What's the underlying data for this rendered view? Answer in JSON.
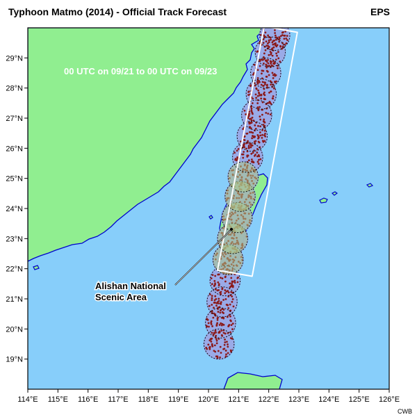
{
  "header": {
    "title": "Typhoon Matmo (2014) - Official Track Forecast",
    "model": "EPS"
  },
  "annotations": {
    "time_window": "00 UTC on 09/21 to 00 UTC on 09/23",
    "callout_line1": "Alishan National",
    "callout_line2": "Scenic Area"
  },
  "credit": "CWB",
  "map": {
    "lon_range": [
      114,
      126
    ],
    "lat_range": [
      18,
      30
    ],
    "lon_ticks": [
      "114°E",
      "115°E",
      "116°E",
      "117°E",
      "118°E",
      "119°E",
      "120°E",
      "121°E",
      "122°E",
      "123°E",
      "124°E",
      "125°E",
      "126°E"
    ],
    "lat_ticks": [
      "19°N",
      "20°N",
      "21°N",
      "22°N",
      "23°N",
      "24°N",
      "25°N",
      "26°N",
      "27°N",
      "28°N",
      "29°N"
    ],
    "colors": {
      "ocean": "#87cefa",
      "land": "#90ee90",
      "coast": "#0000cd",
      "track_band": "#9ba8e6",
      "member_dot": "#8b1a1a",
      "window_box": "#ffffff",
      "highlight_land": "#a9c98a"
    }
  },
  "track_forecast": {
    "centers": [
      {
        "lon": 120.35,
        "lat": 19.5
      },
      {
        "lon": 120.4,
        "lat": 20.2
      },
      {
        "lon": 120.45,
        "lat": 20.9
      },
      {
        "lon": 120.55,
        "lat": 21.6
      },
      {
        "lon": 120.65,
        "lat": 22.3
      },
      {
        "lon": 120.8,
        "lat": 23.0
      },
      {
        "lon": 120.95,
        "lat": 23.7
      },
      {
        "lon": 121.05,
        "lat": 24.4
      },
      {
        "lon": 121.15,
        "lat": 25.05
      },
      {
        "lon": 121.3,
        "lat": 25.7
      },
      {
        "lon": 121.45,
        "lat": 26.4
      },
      {
        "lon": 121.6,
        "lat": 27.1
      },
      {
        "lon": 121.75,
        "lat": 27.8
      },
      {
        "lon": 121.9,
        "lat": 28.5
      },
      {
        "lon": 122.05,
        "lat": 29.2
      },
      {
        "lon": 122.2,
        "lat": 29.75
      }
    ],
    "radius_deg": 0.5,
    "window_corners": [
      {
        "lon": 121.85,
        "lat": 30.05
      },
      {
        "lon": 122.95,
        "lat": 29.85
      },
      {
        "lon": 121.45,
        "lat": 21.75
      },
      {
        "lon": 120.3,
        "lat": 21.95
      }
    ]
  }
}
